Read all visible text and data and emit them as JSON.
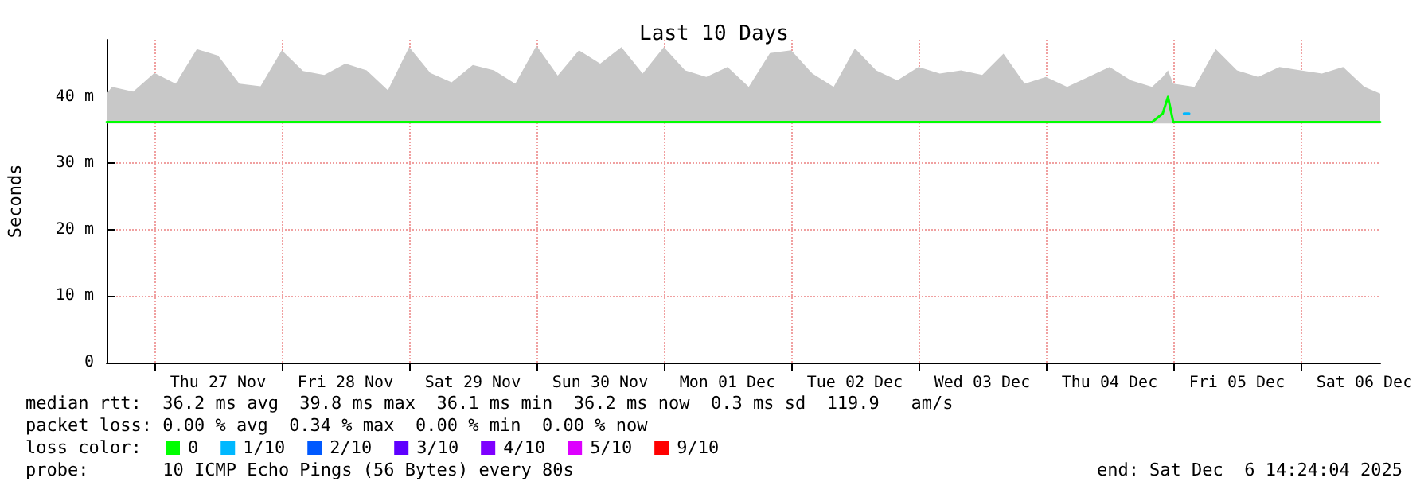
{
  "chart_data": {
    "type": "line",
    "title": "Last 10 Days",
    "ylabel": "Seconds",
    "xlim": [
      "2025-11-26T15:00",
      "2025-12-06T15:00"
    ],
    "xticks": [
      {
        "value": "2025-11-27T00:00",
        "label": null
      },
      {
        "value": "2025-11-27T12:00",
        "label": "Thu 27 Nov"
      },
      {
        "value": "2025-11-28T00:00",
        "label": null
      },
      {
        "value": "2025-11-28T12:00",
        "label": "Fri 28 Nov"
      },
      {
        "value": "2025-11-29T00:00",
        "label": null
      },
      {
        "value": "2025-11-29T12:00",
        "label": "Sat 29 Nov"
      },
      {
        "value": "2025-11-30T00:00",
        "label": null
      },
      {
        "value": "2025-11-30T12:00",
        "label": "Sun 30 Nov"
      },
      {
        "value": "2025-12-01T00:00",
        "label": null
      },
      {
        "value": "2025-12-01T12:00",
        "label": "Mon 01 Dec"
      },
      {
        "value": "2025-12-02T00:00",
        "label": null
      },
      {
        "value": "2025-12-02T12:00",
        "label": "Tue 02 Dec"
      },
      {
        "value": "2025-12-03T00:00",
        "label": null
      },
      {
        "value": "2025-12-03T12:00",
        "label": "Wed 03 Dec"
      },
      {
        "value": "2025-12-04T00:00",
        "label": null
      },
      {
        "value": "2025-12-04T12:00",
        "label": "Thu 04 Dec"
      },
      {
        "value": "2025-12-05T00:00",
        "label": null
      },
      {
        "value": "2025-12-05T12:00",
        "label": "Fri 05 Dec"
      },
      {
        "value": "2025-12-06T00:00",
        "label": null
      },
      {
        "value": "2025-12-06T12:00",
        "label": "Sat 06 Dec"
      }
    ],
    "ylim": [
      0,
      48.6
    ],
    "yticks": [
      0,
      {
        "value": 10,
        "label": "10 m"
      },
      {
        "value": 20,
        "label": "20 m"
      },
      {
        "value": 30,
        "label": "30 m"
      },
      {
        "value": 40,
        "label": "40 m"
      }
    ],
    "grid": true,
    "legend": "bottom left",
    "legend_title": "loss color:",
    "marker": "none",
    "line_style": "solid",
    "series": [
      {
        "name": "0",
        "color": "#00ff00",
        "x": [
          "2025-11-26T15:00",
          "2025-11-26T16:00",
          "2025-11-26T20:00",
          "2025-11-27T00:00",
          "2025-11-27T04:00",
          "2025-11-27T08:00",
          "2025-11-27T12:00",
          "2025-11-27T16:00",
          "2025-11-27T20:00",
          "2025-11-28T00:00",
          "2025-11-28T04:00",
          "2025-11-28T08:00",
          "2025-11-28T12:00",
          "2025-11-28T16:00",
          "2025-11-28T20:00",
          "2025-11-29T00:00",
          "2025-11-29T04:00",
          "2025-11-29T08:00",
          "2025-11-29T12:00",
          "2025-11-29T16:00",
          "2025-11-29T20:00",
          "2025-11-30T00:00",
          "2025-11-30T04:00",
          "2025-11-30T08:00",
          "2025-11-30T12:00",
          "2025-11-30T16:00",
          "2025-11-30T20:00",
          "2025-12-01T00:00",
          "2025-12-01T04:00",
          "2025-12-01T08:00",
          "2025-12-01T12:00",
          "2025-12-01T16:00",
          "2025-12-01T20:00",
          "2025-12-02T00:00",
          "2025-12-02T04:00",
          "2025-12-02T08:00",
          "2025-12-02T12:00",
          "2025-12-02T16:00",
          "2025-12-02T20:00",
          "2025-12-03T00:00",
          "2025-12-03T04:00",
          "2025-12-03T08:00",
          "2025-12-03T12:00",
          "2025-12-03T16:00",
          "2025-12-03T20:00",
          "2025-12-04T00:00",
          "2025-12-04T04:00",
          "2025-12-04T08:00",
          "2025-12-04T12:00",
          "2025-12-04T16:00",
          "2025-12-04T20:00",
          "2025-12-04T22:00",
          "2025-12-04T23:00",
          "2025-12-05T00:00",
          "2025-12-05T04:00",
          "2025-12-05T08:00",
          "2025-12-05T12:00",
          "2025-12-05T16:00",
          "2025-12-05T20:00",
          "2025-12-06T00:00",
          "2025-12-06T04:00",
          "2025-12-06T08:00",
          "2025-12-06T12:00",
          "2025-12-06T15:00"
        ],
        "values": [
          36.2,
          36.2,
          36.2,
          36.2,
          36.2,
          36.2,
          36.2,
          36.2,
          36.2,
          36.2,
          36.2,
          36.2,
          36.2,
          36.2,
          36.2,
          36.2,
          36.2,
          36.2,
          36.2,
          36.2,
          36.2,
          36.2,
          36.2,
          36.2,
          36.2,
          36.2,
          36.2,
          36.2,
          36.2,
          36.2,
          36.2,
          36.2,
          36.2,
          36.2,
          36.2,
          36.2,
          36.2,
          36.2,
          36.2,
          36.2,
          36.2,
          36.2,
          36.2,
          36.2,
          36.2,
          36.2,
          36.2,
          36.2,
          36.2,
          36.2,
          36.2,
          37.5,
          40.0,
          36.2,
          36.2,
          36.2,
          36.2,
          36.2,
          36.2,
          36.2,
          36.2,
          36.2,
          36.2,
          36.2
        ],
        "lower": [
          36.0,
          36.0,
          36.0,
          36.0,
          36.0,
          36.0,
          36.0,
          36.0,
          36.0,
          36.0,
          36.0,
          36.0,
          36.0,
          36.0,
          36.0,
          36.0,
          36.0,
          36.0,
          36.0,
          36.0,
          36.0,
          36.0,
          36.0,
          36.0,
          36.0,
          36.0,
          36.0,
          36.0,
          36.0,
          36.0,
          36.0,
          36.0,
          36.0,
          36.0,
          36.0,
          36.0,
          36.0,
          36.0,
          36.0,
          36.0,
          36.0,
          36.0,
          36.0,
          36.0,
          36.0,
          36.0,
          36.0,
          36.0,
          36.0,
          36.0,
          36.0,
          36.0,
          36.0,
          36.0,
          36.0,
          36.0,
          36.0,
          36.0,
          36.0,
          36.0,
          36.0,
          36.0,
          36.0,
          36.0
        ],
        "upper": [
          40.5,
          41.5,
          40.8,
          43.6,
          42.0,
          47.2,
          46.2,
          42.0,
          41.6,
          47.0,
          43.9,
          43.3,
          45.0,
          44.0,
          41.0,
          47.5,
          43.6,
          42.2,
          44.8,
          44.0,
          42.0,
          47.7,
          43.2,
          47.0,
          45.0,
          47.5,
          43.5,
          47.5,
          44.0,
          43.0,
          44.5,
          41.5,
          46.6,
          47.0,
          43.5,
          41.5,
          47.3,
          44.0,
          42.5,
          44.5,
          43.5,
          44.0,
          43.3,
          46.5,
          42.0,
          43.0,
          41.5,
          43.0,
          44.5,
          42.5,
          41.5,
          43.0,
          44.0,
          42.0,
          41.5,
          47.2,
          44.0,
          43.0,
          44.5,
          44.0,
          43.5,
          44.5,
          41.5,
          40.5
        ]
      },
      {
        "name": "1/10",
        "color": "#00b8ff",
        "x": [
          "2025-12-05T02:00",
          "2025-12-05T03:00"
        ],
        "values": [
          37.5,
          37.5
        ]
      },
      {
        "name": "2/10",
        "color": "#0059ff"
      },
      {
        "name": "3/10",
        "color": "#5e00ff"
      },
      {
        "name": "4/10",
        "color": "#7e00ff"
      },
      {
        "name": "5/10",
        "color": "#dd00ff"
      },
      {
        "name": "9/10",
        "color": "#ff0000"
      }
    ],
    "annotations": [
      "median rtt:  36.2 ms avg  39.8 ms max  36.1 ms min  36.2 ms now  0.3 ms sd  119.9   am/s",
      "packet loss: 0.00 % avg  0.34 % max  0.00 % min  0.00 % now",
      "probe:       10 ICMP Echo Pings (56 Bytes) every 80s",
      "end: Sat Dec  6 14:24:04 2025"
    ]
  }
}
